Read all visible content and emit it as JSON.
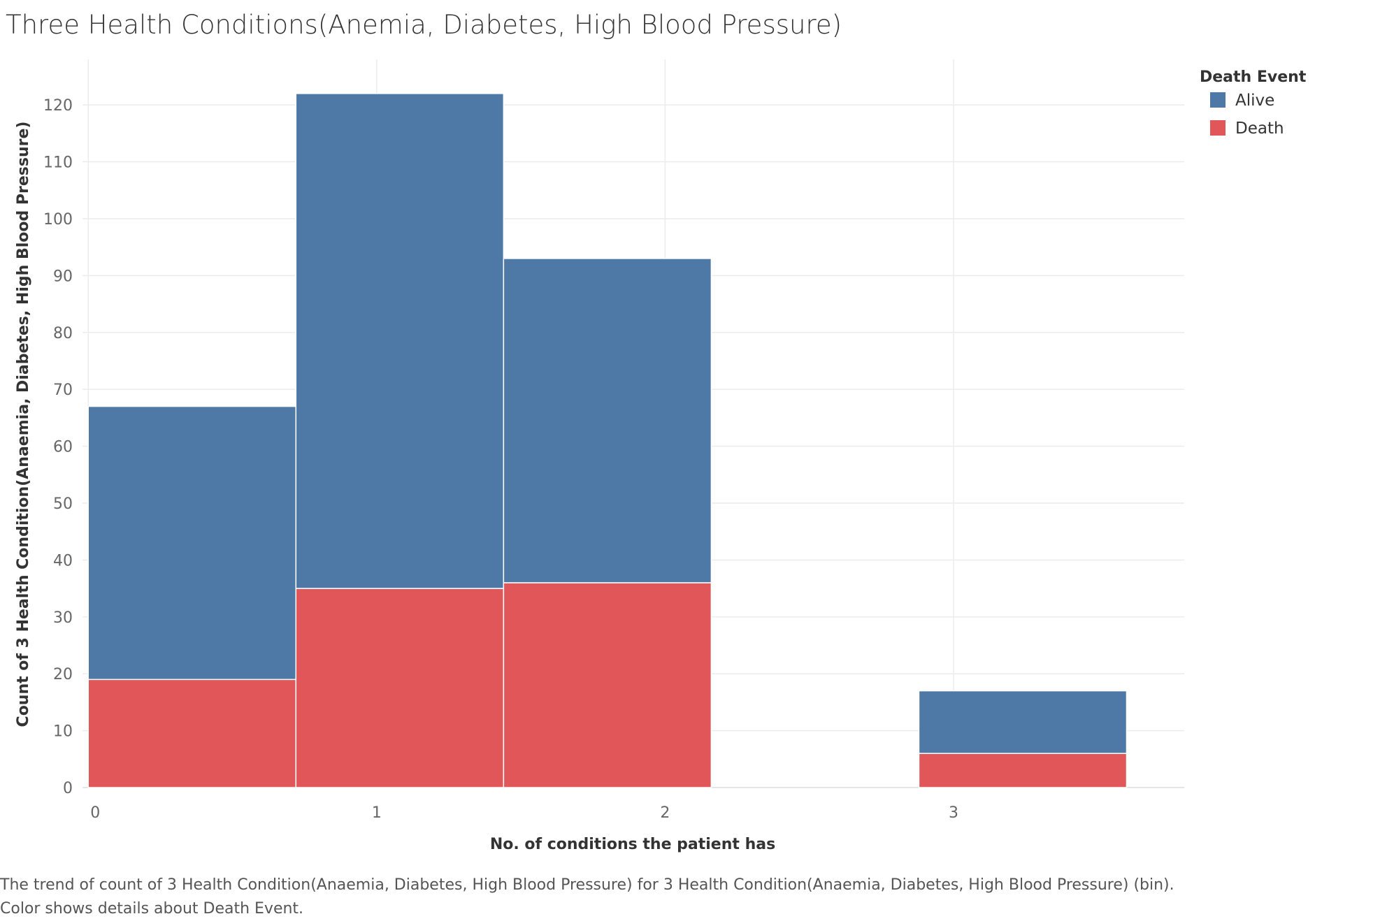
{
  "chart_data": {
    "type": "bar",
    "stacked": true,
    "title": "Three Health Conditions(Anemia, Diabetes, High Blood Pressure)",
    "xlabel": "No. of conditions the patient has",
    "ylabel": "Count of 3 Health Condition(Anaemia, Diabetes, High Blood Pressure)",
    "categories": [
      "0",
      "1",
      "2",
      "3"
    ],
    "x_ticks": [
      "0",
      "1",
      "2",
      "3"
    ],
    "y_ticks": [
      0,
      10,
      20,
      30,
      40,
      50,
      60,
      70,
      80,
      90,
      100,
      110,
      120
    ],
    "ylim": [
      0,
      128
    ],
    "legend_title": "Death Event",
    "legend_position": "top-right",
    "grid": true,
    "series": [
      {
        "name": "Death",
        "color": "#e15759",
        "values": [
          19,
          35,
          36,
          6
        ]
      },
      {
        "name": "Alive",
        "color": "#4e79a7",
        "values": [
          48,
          87,
          57,
          11
        ]
      }
    ],
    "legend_entries": [
      {
        "name": "Alive",
        "color": "#4e79a7"
      },
      {
        "name": "Death",
        "color": "#e15759"
      }
    ],
    "caption": "The trend of count of 3 Health Condition(Anaemia, Diabetes, High Blood Pressure) for 3 Health Condition(Anaemia, Diabetes, High Blood Pressure) (bin).  Color shows details about Death Event."
  }
}
